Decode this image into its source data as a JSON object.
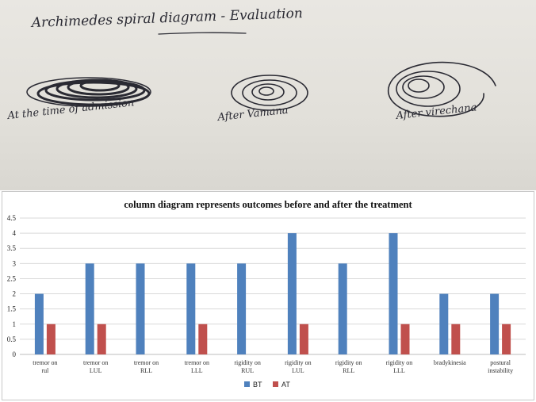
{
  "photo": {
    "heading": "Archimedes spiral diagram - Evaluation",
    "captions": [
      "At the time of admission",
      "After Vamana",
      "After virechana"
    ]
  },
  "colors": {
    "BT": "#4f81bd",
    "AT": "#c0504d"
  },
  "chart_data": {
    "type": "bar",
    "title": "column diagram represents outcomes before and after the treatment",
    "categories": [
      [
        "tremor on",
        "rul"
      ],
      [
        "tremor on",
        "LUL"
      ],
      [
        "tremor on",
        "RLL"
      ],
      [
        "tremor on",
        "LLL"
      ],
      [
        "rigidity on",
        "RUL"
      ],
      [
        "rigidity on",
        "LUL"
      ],
      [
        "rigidity on",
        "RLL"
      ],
      [
        "rigidity on",
        "LLL"
      ],
      [
        "bradykinesia"
      ],
      [
        "postural",
        "instability"
      ]
    ],
    "series": [
      {
        "name": "BT",
        "values": [
          2,
          3,
          3,
          3,
          3,
          4,
          3,
          4,
          2,
          2
        ]
      },
      {
        "name": "AT",
        "values": [
          1,
          1,
          0,
          1,
          0,
          1,
          0,
          1,
          1,
          1
        ]
      }
    ],
    "yticks": [
      "0",
      "0.5",
      "1",
      "1.5",
      "2",
      "2.5",
      "3",
      "3.5",
      "4",
      "4.5"
    ],
    "ylim": [
      0,
      4.5
    ],
    "grid": true,
    "legend": "bottom"
  }
}
